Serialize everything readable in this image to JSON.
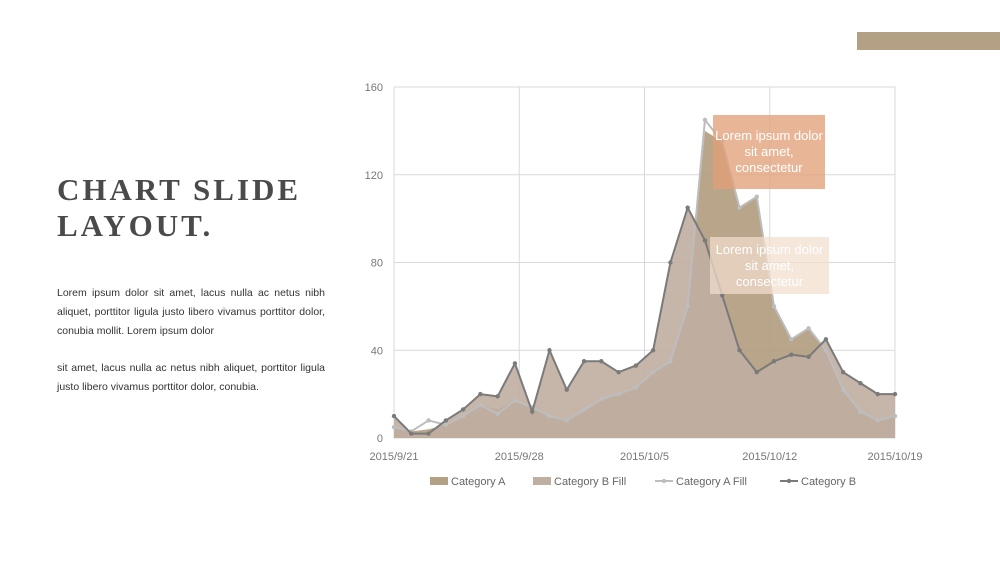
{
  "slide": {
    "title_line1": "CHART SLIDE",
    "title_line2": "LAYOUT.",
    "paragraph1": "Lorem ipsum dolor sit amet, lacus nulla ac netus nibh aliquet, porttitor ligula justo libero vivamus porttitor dolor, conubia mollit. Lorem ipsum dolor",
    "paragraph2": "sit amet, lacus nulla ac netus nibh aliquet, porttitor ligula justo libero vivamus porttitor dolor, conubia.",
    "accent_color": "#b4a084"
  },
  "callouts": [
    {
      "text": "Lorem ipsum dolor sit amet, consectetur",
      "color": "#e2a078"
    },
    {
      "text": "Lorem ipsum dolor sit amet, consectetur",
      "color": "#f2decd"
    }
  ],
  "chart_data": {
    "type": "area",
    "ylim": [
      0,
      160
    ],
    "yticks": [
      "0",
      "40",
      "80",
      "120",
      "160"
    ],
    "xticks": [
      "2015/9/21",
      "2015/9/28",
      "2015/10/5",
      "2015/10/12",
      "2015/10/19"
    ],
    "grid": true,
    "legend_position": "bottom",
    "legend": [
      "Category A",
      "Category B Fill",
      "Category A Fill",
      "Category B"
    ],
    "colors": {
      "category_a": "#b4a084",
      "category_b_fill": "#c0aea1",
      "category_a_fill": "#bdbdbd",
      "category_b": "#7a7a7a"
    },
    "series": [
      {
        "name": "Category A",
        "values": [
          5,
          3,
          4,
          6,
          10,
          15,
          13,
          17,
          14,
          10,
          8,
          12,
          17,
          20,
          23,
          30,
          35,
          60,
          140,
          135,
          105,
          110,
          60,
          45,
          50,
          40,
          22,
          12,
          8,
          10
        ]
      },
      {
        "name": "Category B Fill",
        "values": [
          10,
          2,
          2,
          8,
          13,
          20,
          19,
          34,
          12,
          40,
          22,
          35,
          35,
          30,
          33,
          40,
          80,
          105,
          90,
          65,
          40,
          30,
          35,
          38,
          37,
          45,
          30,
          25,
          20,
          20
        ]
      },
      {
        "name": "Category A Fill",
        "values": [
          5,
          3,
          8,
          6,
          10,
          15,
          11,
          17,
          14,
          10,
          8,
          13,
          18,
          20,
          23,
          30,
          35,
          60,
          145,
          135,
          105,
          110,
          60,
          45,
          50,
          40,
          22,
          12,
          8,
          10
        ]
      },
      {
        "name": "Category B",
        "values": [
          10,
          2,
          2,
          8,
          13,
          20,
          19,
          34,
          12,
          40,
          22,
          35,
          35,
          30,
          33,
          40,
          80,
          105,
          90,
          65,
          40,
          30,
          35,
          38,
          37,
          45,
          30,
          25,
          20,
          20
        ]
      }
    ]
  }
}
